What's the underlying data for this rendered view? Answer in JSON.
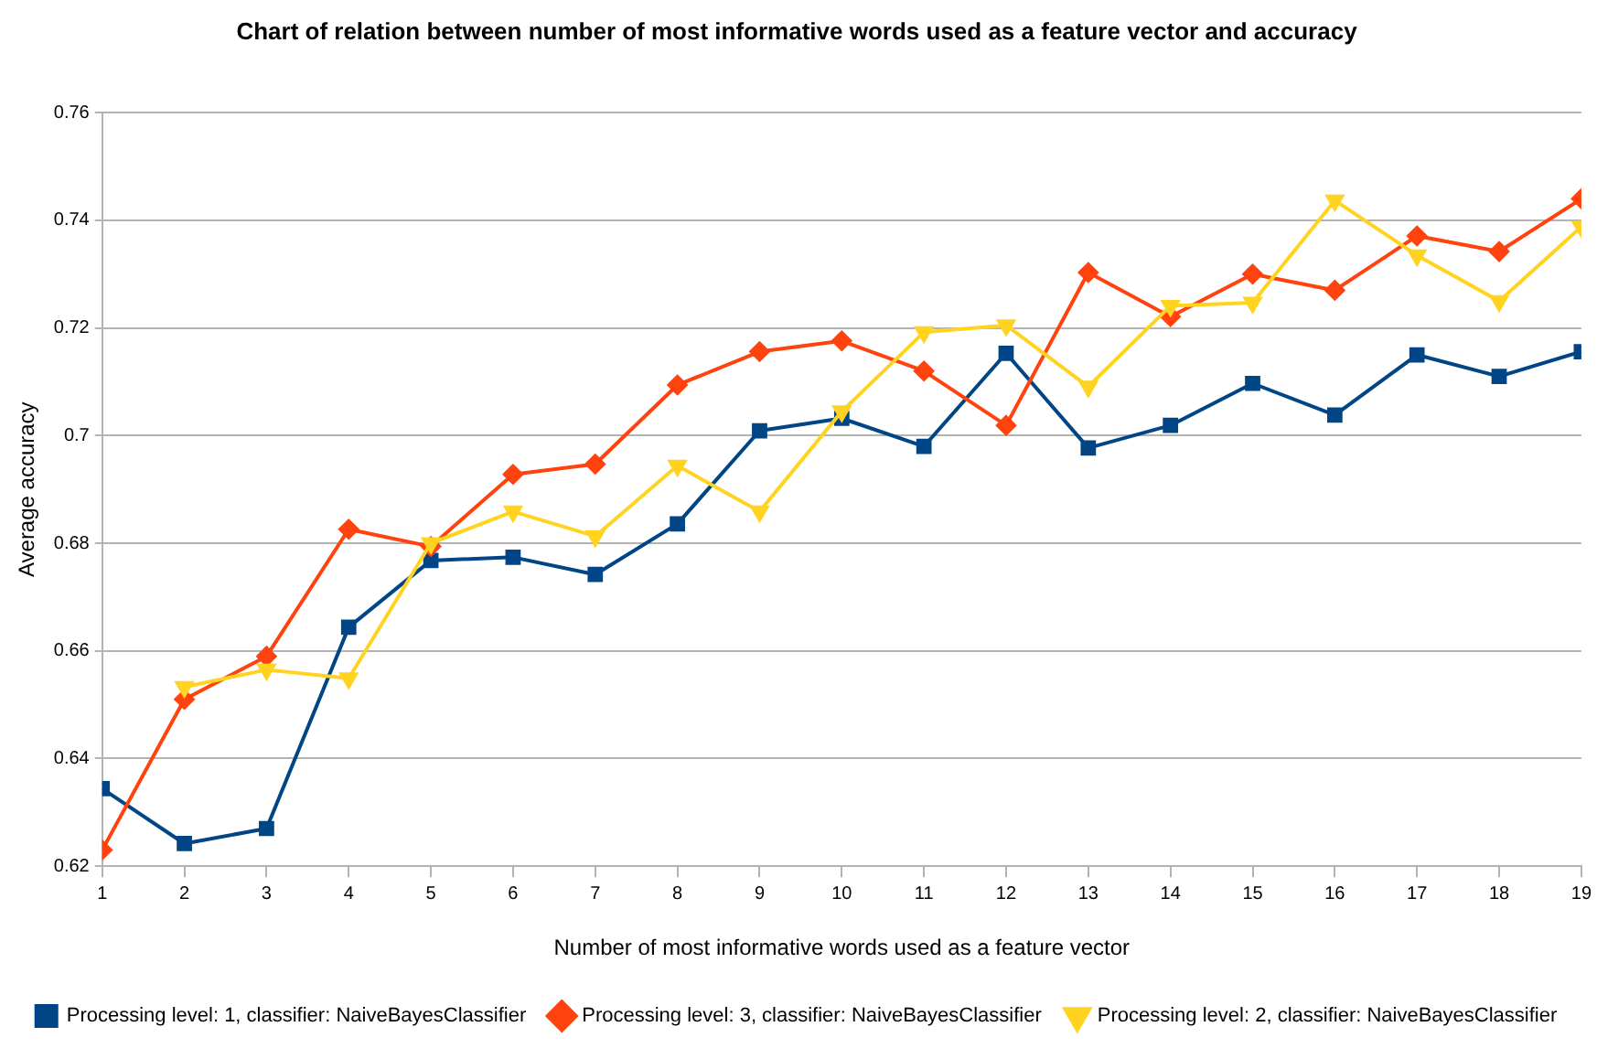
{
  "chart_data": {
    "type": "line",
    "title": "Chart of relation between number of most informative words used as a feature vector and accuracy",
    "xlabel": "Number of most informative words used as a feature vector",
    "ylabel": "Average accuracy",
    "x": [
      1,
      2,
      3,
      4,
      5,
      6,
      7,
      8,
      9,
      10,
      11,
      12,
      13,
      14,
      15,
      16,
      17,
      18,
      19
    ],
    "xlim": [
      1,
      19
    ],
    "xticks": [
      1,
      2,
      3,
      4,
      5,
      6,
      7,
      8,
      9,
      10,
      11,
      12,
      13,
      14,
      15,
      16,
      17,
      18,
      19
    ],
    "ylim": [
      0.62,
      0.76
    ],
    "yticks": [
      {
        "value": 0.62,
        "label": "0.62"
      },
      {
        "value": 0.64,
        "label": "0.64"
      },
      {
        "value": 0.66,
        "label": "0.66"
      },
      {
        "value": 0.68,
        "label": "0.68"
      },
      {
        "value": 0.7,
        "label": "0.7"
      },
      {
        "value": 0.72,
        "label": "0.72"
      },
      {
        "value": 0.74,
        "label": "0.74"
      },
      {
        "value": 0.76,
        "label": "0.76"
      }
    ],
    "grid": "y",
    "legend": "bottom",
    "line_style": "solid",
    "series": [
      {
        "name": "Processing level: 1, classifier: NaiveBayesClassifier",
        "color": "#004586",
        "marker": "square",
        "values": [
          0.6344,
          0.6242,
          0.627,
          0.6644,
          0.6768,
          0.6774,
          0.6742,
          0.6836,
          0.7009,
          0.7032,
          0.698,
          0.7153,
          0.6977,
          0.7019,
          0.7097,
          0.7038,
          0.715,
          0.711,
          0.7156
        ]
      },
      {
        "name": "Processing level: 3, classifier: NaiveBayesClassifier",
        "color": "#ff420e",
        "marker": "diamond",
        "values": [
          0.623,
          0.651,
          0.659,
          0.6826,
          0.6794,
          0.6928,
          0.6947,
          0.7094,
          0.7156,
          0.7176,
          0.712,
          0.7019,
          0.7303,
          0.7221,
          0.73,
          0.727,
          0.7371,
          0.7342,
          0.744
        ]
      },
      {
        "name": "Processing level: 2, classifier: NaiveBayesClassifier",
        "color": "#ffd320",
        "marker": "triangle",
        "values": [
          null,
          0.6533,
          0.6565,
          0.6549,
          0.68,
          0.6859,
          0.6813,
          0.6944,
          0.6859,
          0.7045,
          0.7192,
          0.7205,
          0.7091,
          0.7241,
          0.7247,
          0.7437,
          0.7335,
          0.725,
          0.7388
        ]
      }
    ]
  }
}
